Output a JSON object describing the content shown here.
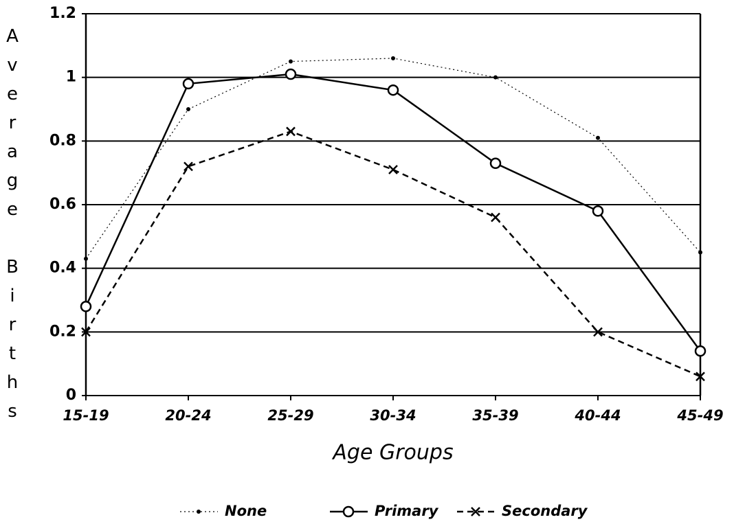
{
  "chart_data": {
    "type": "line",
    "x_label": "Age Groups",
    "y_label": "Average Births",
    "categories": [
      "15-19",
      "20-24",
      "25-29",
      "30-34",
      "35-39",
      "40-44",
      "45-49"
    ],
    "series": [
      {
        "name": "None",
        "color": "#000000",
        "dash": "2 4",
        "marker": "dot",
        "values": [
          0.43,
          0.9,
          1.05,
          1.06,
          1.0,
          0.81,
          0.45
        ]
      },
      {
        "name": "Primary",
        "color": "#000000",
        "dash": "none",
        "marker": "circle",
        "values": [
          0.28,
          0.98,
          1.01,
          0.96,
          0.73,
          0.58,
          0.14
        ]
      },
      {
        "name": "Secondary",
        "color": "#000000",
        "dash": "9 6",
        "marker": "x",
        "values": [
          0.2,
          0.72,
          0.83,
          0.71,
          0.56,
          0.2,
          0.06
        ]
      }
    ],
    "ylim": [
      0,
      1.2
    ],
    "yticks": [
      0,
      0.2,
      0.4,
      0.6,
      0.8,
      1,
      1.2
    ],
    "grid": true,
    "legend": "bottom"
  }
}
